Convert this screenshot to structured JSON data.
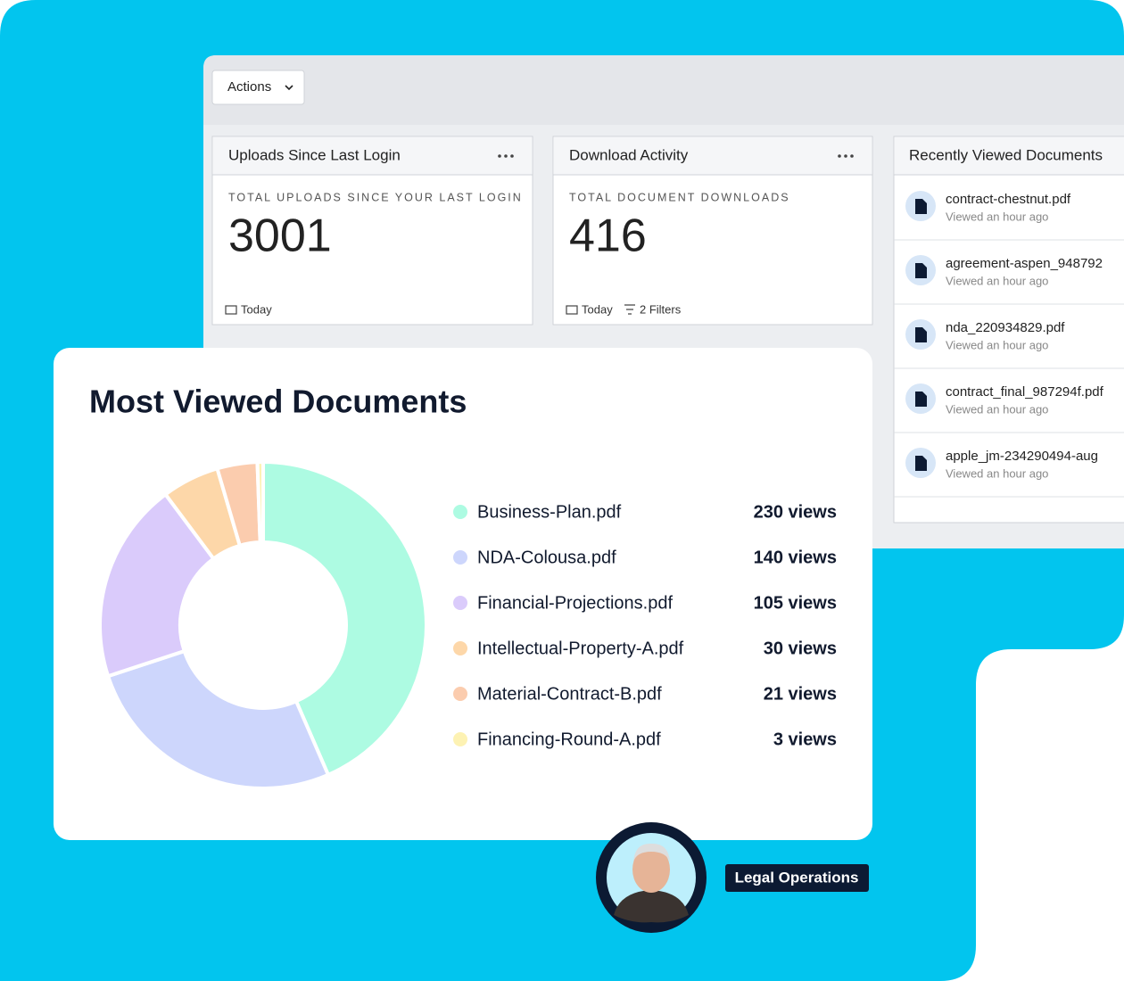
{
  "toolbar": {
    "actions": "Actions"
  },
  "uploads_card": {
    "title": "Uploads Since Last Login",
    "label": "TOTAL UPLOADS SINCE YOUR LAST LOGIN",
    "value": "3001",
    "footer": "Today"
  },
  "downloads_card": {
    "title": "Download Activity",
    "label": "TOTAL DOCUMENT DOWNLOADS",
    "value": "416",
    "footer": "Today",
    "filters": "2 Filters"
  },
  "recent_card": {
    "title": "Recently Viewed Documents",
    "items": [
      {
        "name": "contract-chestnut.pdf",
        "time": "Viewed an hour ago"
      },
      {
        "name": "agreement-aspen_948792",
        "time": "Viewed an hour ago"
      },
      {
        "name": "nda_220934829.pdf",
        "time": "Viewed an hour ago"
      },
      {
        "name": "contract_final_987294f.pdf",
        "time": "Viewed an hour ago"
      },
      {
        "name": "apple_jm-234290494-aug",
        "time": "Viewed an hour ago"
      }
    ]
  },
  "chart_data": {
    "type": "pie",
    "title": "Most Viewed Documents",
    "categories": [
      "Business-Plan.pdf",
      "NDA-Colousa.pdf",
      "Financial-Projections.pdf",
      "Intellectual-Property-A.pdf",
      "Material-Contract-B.pdf",
      "Financing-Round-A.pdf"
    ],
    "values": [
      230,
      140,
      105,
      30,
      21,
      3
    ],
    "value_labels": [
      "230 views",
      "140 views",
      "105 views",
      "30 views",
      "21 views",
      "3 views"
    ],
    "colors": [
      "#adfbe2",
      "#cdd6fc",
      "#dacbfb",
      "#fdd7a9",
      "#fbccae",
      "#fdf2b3"
    ],
    "donut": true
  },
  "badge": {
    "label": "Legal Operations"
  }
}
